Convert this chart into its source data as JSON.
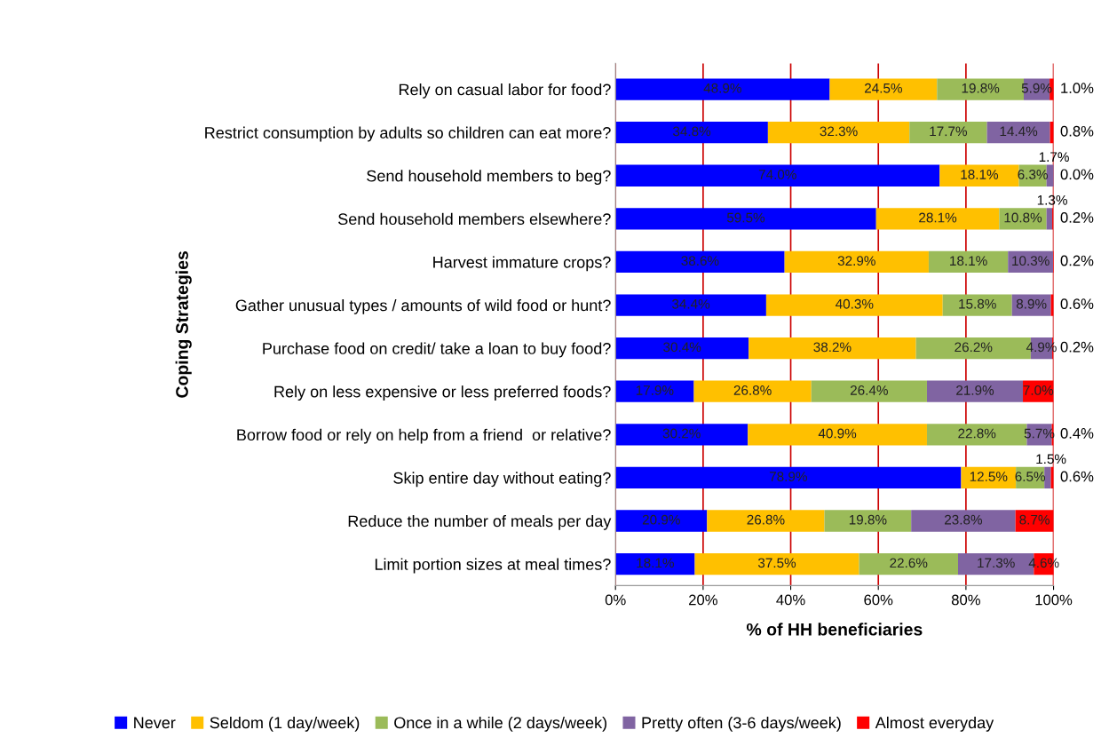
{
  "chart_data": {
    "type": "bar",
    "orientation": "horizontal",
    "stacked": true,
    "categories": [
      "Rely on casual labor for food?",
      "Restrict consumption by adults so children can eat more?",
      "Send household members to beg?",
      "Send household members elsewhere?",
      "Harvest immature crops?",
      "Gather unusual types / amounts of wild food or hunt?",
      "Purchase food on credit/ take a loan to buy food?",
      "Rely on less expensive or less preferred foods?",
      "Borrow food or rely on help from a friend  or relative?",
      "Skip entire day without eating?",
      "Reduce the number of meals per day",
      "Limit portion sizes at meal times?"
    ],
    "series": [
      {
        "name": "Never",
        "color": "#0000ff",
        "values": [
          48.9,
          34.8,
          74.0,
          59.5,
          38.6,
          34.4,
          30.4,
          17.9,
          30.2,
          78.9,
          20.9,
          18.1
        ],
        "value_labels": [
          "48.9%",
          "34.8%",
          "74.0%",
          "59.5%",
          "38.6%",
          "34.4%",
          "30.4%",
          "17.9%",
          "30.2%",
          "78.9%",
          "20.9%",
          "18.1%"
        ]
      },
      {
        "name": "Seldom (1 day/week)",
        "color": "#ffc000",
        "values": [
          24.5,
          32.3,
          18.1,
          28.1,
          32.9,
          40.3,
          38.2,
          26.8,
          40.9,
          12.5,
          26.8,
          37.5
        ],
        "value_labels": [
          "24.5%",
          "32.3%",
          "18.1%",
          "28.1%",
          "32.9%",
          "40.3%",
          "38.2%",
          "26.8%",
          "40.9%",
          "12.5%",
          "26.8%",
          "37.5%"
        ]
      },
      {
        "name": "Once in a while (2 days/week)",
        "color": "#9bbb59",
        "values": [
          19.8,
          17.7,
          6.3,
          10.8,
          18.1,
          15.8,
          26.2,
          26.4,
          22.8,
          6.5,
          19.8,
          22.6
        ],
        "value_labels": [
          "19.8%",
          "17.7%",
          "6.3%",
          "10.8%",
          "18.1%",
          "15.8%",
          "26.2%",
          "26.4%",
          "22.8%",
          "6.5%",
          "19.8%",
          "22.6%"
        ]
      },
      {
        "name": "Pretty often (3-6 days/week)",
        "color": "#8064a2",
        "values": [
          5.9,
          14.4,
          1.7,
          1.3,
          10.3,
          8.9,
          4.9,
          21.9,
          5.7,
          1.5,
          23.8,
          17.3
        ],
        "value_labels": [
          "5.9%",
          "14.4%",
          "1.7%",
          "1.3%",
          "10.3%",
          "8.9%",
          "4.9%",
          "21.9%",
          "5.7%",
          "1.5%",
          "23.8%",
          "17.3%"
        ]
      },
      {
        "name": "Almost everyday",
        "color": "#ff0000",
        "values": [
          1.0,
          0.8,
          0.0,
          0.2,
          0.2,
          0.6,
          0.2,
          7.0,
          0.4,
          0.6,
          8.7,
          4.6
        ],
        "value_labels": [
          "1.0%",
          "0.8%",
          "0.0%",
          "0.2%",
          "0.2%",
          "0.6%",
          "0.2%",
          "7.0%",
          "0.4%",
          "0.6%",
          "8.7%",
          "4.6%"
        ]
      }
    ],
    "xlabel": "% of HH beneficiaries",
    "ylabel": "Coping Strategies",
    "xlim": [
      0,
      100
    ],
    "xticks": [
      {
        "value": 0,
        "label": "0%"
      },
      {
        "value": 20,
        "label": "20%"
      },
      {
        "value": 40,
        "label": "40%"
      },
      {
        "value": 60,
        "label": "60%"
      },
      {
        "value": 80,
        "label": "80%"
      },
      {
        "value": 100,
        "label": "100%"
      }
    ],
    "grid": "x",
    "legend": "bottom"
  }
}
